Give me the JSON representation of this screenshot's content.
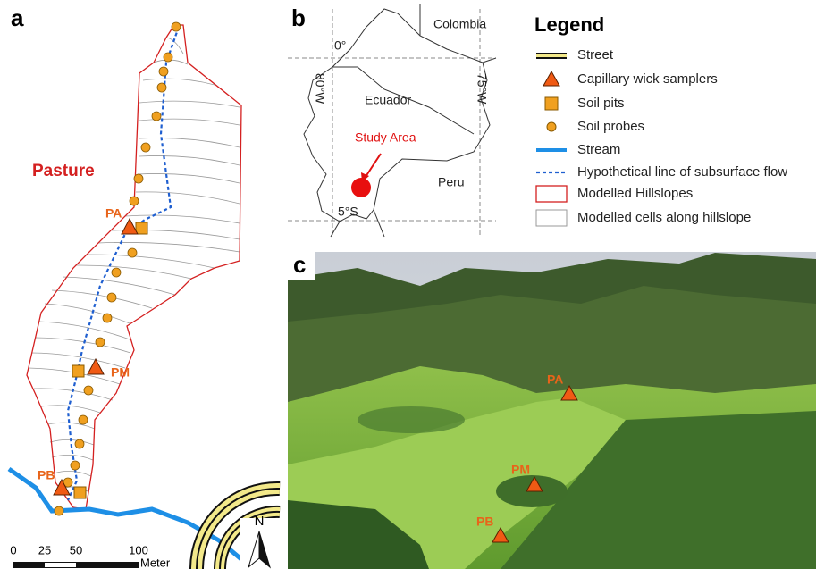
{
  "panel_a": {
    "label": "a",
    "site": "Pasture",
    "points": [
      "PA",
      "PM",
      "PB"
    ],
    "scale": {
      "ticks": [
        "0",
        "25",
        "50",
        "100"
      ],
      "unit": "Meter"
    },
    "north": "N"
  },
  "panel_b": {
    "label": "b",
    "countries": [
      "Colombia",
      "Ecuador",
      "Peru"
    ],
    "graticule": [
      "0°",
      "80°W",
      "75°W",
      "5°S"
    ],
    "annotation": "Study Area"
  },
  "legend": {
    "title": "Legend",
    "items": [
      "Street",
      "Capillary wick samplers",
      "Soil pits",
      "Soil probes",
      "Stream",
      "Hypothetical line of subsurface flow",
      "Modelled Hillslopes",
      "Modelled cells along hillslope"
    ]
  },
  "panel_c": {
    "label": "c",
    "points": [
      "PA",
      "PM",
      "PB"
    ]
  }
}
